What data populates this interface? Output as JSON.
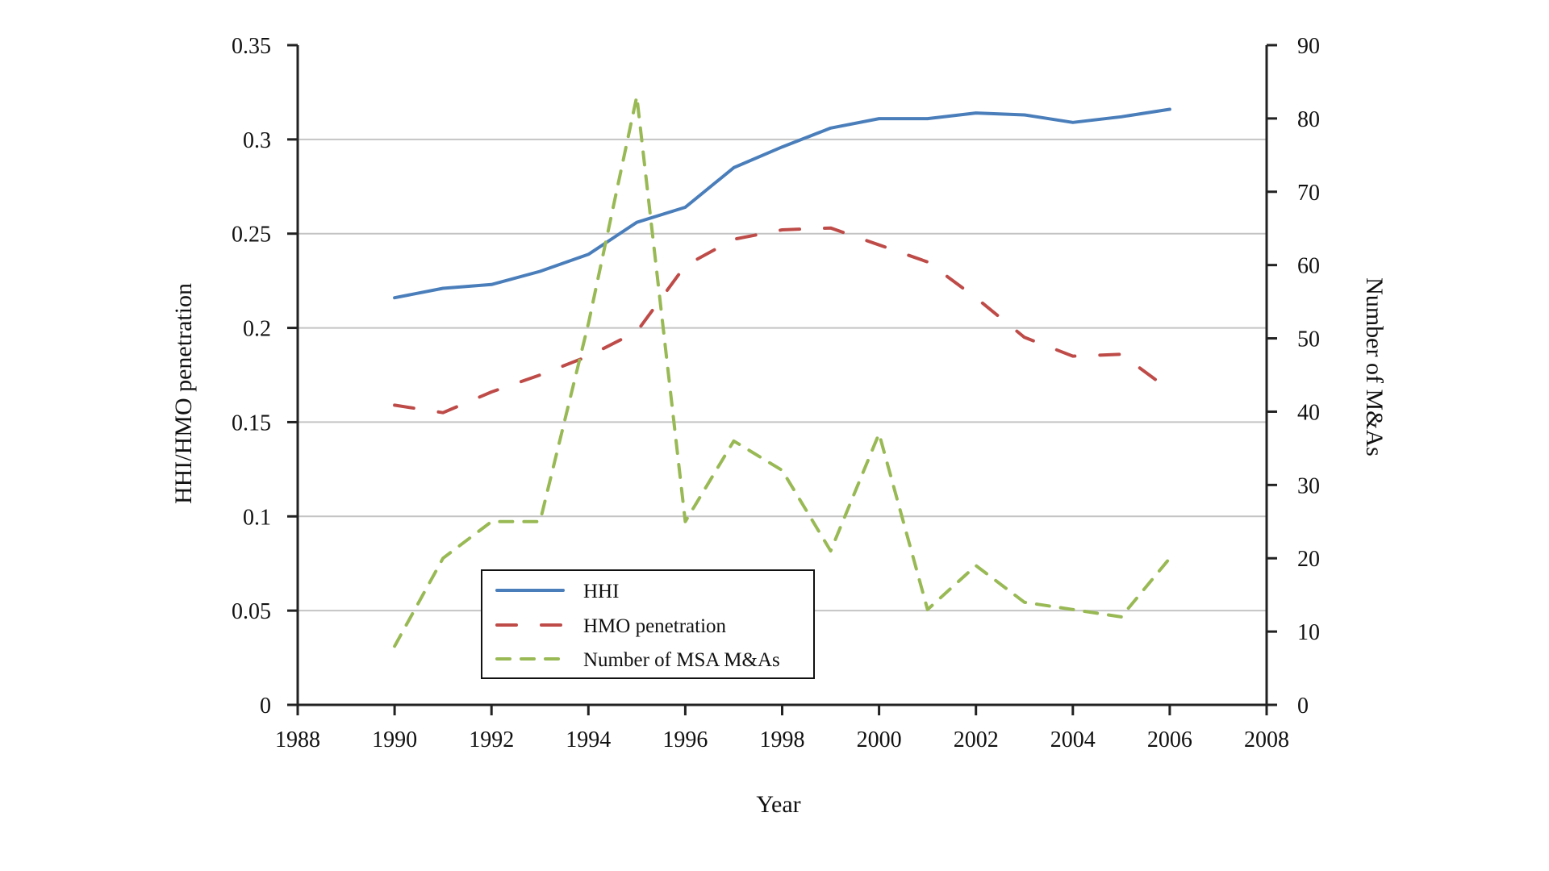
{
  "chart_data": {
    "type": "line",
    "title": "",
    "xlabel": "Year",
    "ylabel": "HHI/HMO penetration",
    "y2label": "Number of M&As",
    "xlim": [
      1988,
      2008
    ],
    "ylim": [
      0,
      0.35
    ],
    "y2lim": [
      0,
      90
    ],
    "grid": true,
    "legend_position": "bottom-left",
    "x_ticks": [
      "1988",
      "1990",
      "1992",
      "1994",
      "1996",
      "1998",
      "2000",
      "2002",
      "2004",
      "2006",
      "2008"
    ],
    "y_ticks": [
      "0",
      "0.05",
      "0.1",
      "0.15",
      "0.2",
      "0.25",
      "0.3",
      "0.35"
    ],
    "y2_ticks": [
      "0",
      "10",
      "20",
      "30",
      "40",
      "50",
      "60",
      "70",
      "80",
      "90"
    ],
    "x": [
      1990,
      1991,
      1992,
      1993,
      1994,
      1995,
      1996,
      1997,
      1998,
      1999,
      2000,
      2001,
      2002,
      2003,
      2004,
      2005,
      2006
    ],
    "series": [
      {
        "name": "HHI",
        "axis": "left",
        "style": "solid",
        "color": "#4a7ebb",
        "values": [
          0.216,
          0.221,
          0.223,
          0.23,
          0.239,
          0.256,
          0.264,
          0.285,
          0.296,
          0.306,
          0.311,
          0.311,
          0.314,
          0.313,
          0.309,
          0.312,
          0.316
        ]
      },
      {
        "name": "HMO penetration",
        "axis": "left",
        "style": "long-dash",
        "color": "#be4b48",
        "values": [
          0.159,
          0.155,
          0.166,
          0.175,
          0.185,
          0.198,
          0.233,
          0.247,
          0.252,
          0.253,
          0.244,
          0.235,
          0.216,
          0.195,
          0.185,
          0.186,
          0.167
        ]
      },
      {
        "name": "Number of MSA M&As",
        "axis": "right",
        "style": "dash",
        "color": "#98b954",
        "values": [
          8,
          20,
          25,
          25,
          52,
          83,
          25,
          36,
          32,
          21,
          37,
          13,
          19,
          14,
          13,
          12,
          20
        ]
      }
    ]
  }
}
